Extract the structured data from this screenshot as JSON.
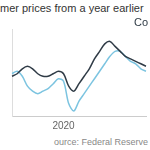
{
  "chart_data": {
    "type": "line",
    "title": "mer prices from a year earlier",
    "source": "ource: Federal Reserve",
    "categories": [
      null,
      null,
      null,
      null,
      null,
      null,
      null,
      null,
      null,
      null,
      "2020",
      null,
      null,
      null,
      null,
      null,
      null,
      null,
      null,
      null,
      null,
      null,
      null,
      null,
      null,
      null,
      null
    ],
    "series": [
      {
        "name": "Co",
        "color": "#2f3b46",
        "values": [
          1.6,
          1.7,
          1.9,
          2.0,
          1.9,
          1.7,
          1.6,
          1.6,
          1.7,
          1.8,
          1.7,
          1.2,
          1.0,
          1.3,
          1.6,
          1.9,
          2.3,
          2.6,
          2.9,
          3.0,
          2.8,
          2.6,
          2.4,
          2.3,
          2.2,
          2.1,
          2.0
        ]
      },
      {
        "color": "#7cc4e0",
        "values": [
          1.7,
          1.8,
          1.6,
          1.2,
          1.0,
          0.9,
          1.0,
          1.1,
          1.3,
          1.5,
          1.4,
          0.5,
          0.2,
          0.6,
          0.9,
          1.2,
          1.5,
          1.8,
          2.1,
          2.4,
          2.6,
          2.6,
          2.4,
          2.2,
          2.1,
          1.9,
          1.8
        ]
      }
    ],
    "ylim": [
      0,
      3.5
    ],
    "grid": false,
    "tick_labels": "x"
  }
}
